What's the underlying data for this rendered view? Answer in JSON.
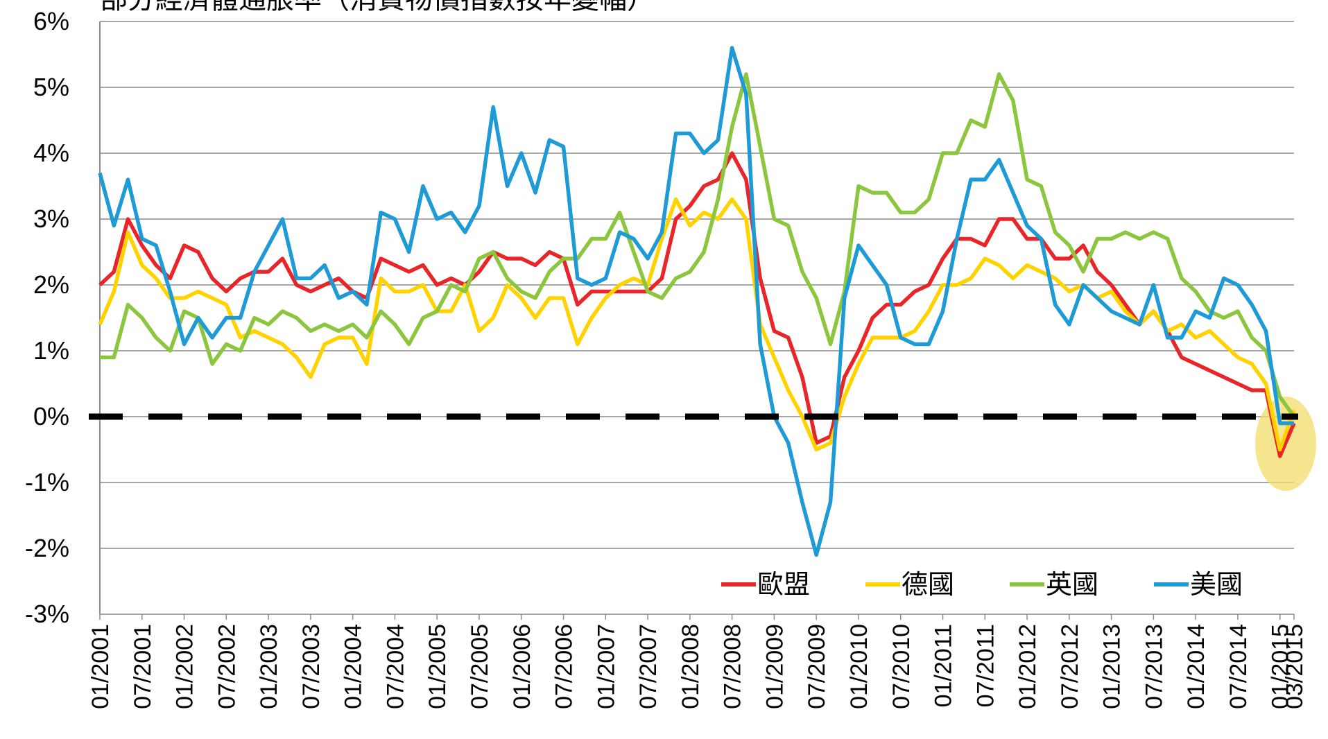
{
  "chart_data": {
    "type": "line",
    "title": "部分經濟體通脹率（消費物價指數按年變幅）",
    "categories": [
      "01/2001",
      null,
      null,
      "07/2001",
      null,
      null,
      "01/2002",
      null,
      null,
      "07/2002",
      null,
      null,
      "01/2003",
      null,
      null,
      "07/2003",
      null,
      null,
      "01/2004",
      null,
      null,
      "07/2004",
      null,
      null,
      "01/2005",
      null,
      null,
      "07/2005",
      null,
      null,
      "01/2006",
      null,
      null,
      "07/2006",
      null,
      null,
      "01/2007",
      null,
      null,
      "07/2007",
      null,
      null,
      "01/2008",
      null,
      null,
      "07/2008",
      null,
      null,
      "01/2009",
      null,
      null,
      "07/2009",
      null,
      null,
      "01/2010",
      null,
      null,
      "07/2010",
      null,
      null,
      "01/2011",
      null,
      null,
      "07/2011",
      null,
      null,
      "01/2012",
      null,
      null,
      "07/2012",
      null,
      null,
      "01/2013",
      null,
      null,
      "07/2013",
      null,
      null,
      "01/2014",
      null,
      null,
      "07/2014",
      null,
      null,
      "01/2015",
      "03/2015"
    ],
    "series": [
      {
        "name": "歐盟",
        "color": "#e8262a",
        "values": [
          2.0,
          2.2,
          3.0,
          2.6,
          2.3,
          2.1,
          2.6,
          2.5,
          2.1,
          1.9,
          2.1,
          2.2,
          2.2,
          2.4,
          2.0,
          1.9,
          2.0,
          2.1,
          1.9,
          1.8,
          2.4,
          2.3,
          2.2,
          2.3,
          2.0,
          2.1,
          2.0,
          2.2,
          2.5,
          2.4,
          2.4,
          2.3,
          2.5,
          2.4,
          1.7,
          1.9,
          1.9,
          1.9,
          1.9,
          1.9,
          2.1,
          3.0,
          3.2,
          3.5,
          3.6,
          4.0,
          3.6,
          2.1,
          1.3,
          1.2,
          0.6,
          -0.4,
          -0.3,
          0.6,
          1.0,
          1.5,
          1.7,
          1.7,
          1.9,
          2.0,
          2.4,
          2.7,
          2.7,
          2.6,
          3.0,
          3.0,
          2.7,
          2.7,
          2.4,
          2.4,
          2.6,
          2.2,
          2.0,
          1.7,
          1.4,
          1.6,
          1.3,
          0.9,
          0.8,
          0.7,
          0.6,
          0.5,
          0.4,
          0.4,
          -0.6,
          -0.1
        ]
      },
      {
        "name": "德國",
        "color": "#ffd200",
        "values": [
          1.4,
          1.9,
          2.8,
          2.3,
          2.1,
          1.8,
          1.8,
          1.9,
          1.8,
          1.7,
          1.2,
          1.3,
          1.2,
          1.1,
          0.9,
          0.6,
          1.1,
          1.2,
          1.2,
          0.8,
          2.1,
          1.9,
          1.9,
          2.0,
          1.6,
          1.6,
          2.0,
          1.3,
          1.5,
          2.0,
          1.8,
          1.5,
          1.8,
          1.8,
          1.1,
          1.5,
          1.8,
          2.0,
          2.1,
          2.0,
          2.7,
          3.3,
          2.9,
          3.1,
          3.0,
          3.3,
          3.0,
          1.4,
          0.9,
          0.4,
          0.0,
          -0.5,
          -0.4,
          0.3,
          0.8,
          1.2,
          1.2,
          1.2,
          1.3,
          1.6,
          2.0,
          2.0,
          2.1,
          2.4,
          2.3,
          2.1,
          2.3,
          2.2,
          2.1,
          1.9,
          2.0,
          1.8,
          1.9,
          1.6,
          1.4,
          1.6,
          1.3,
          1.4,
          1.2,
          1.3,
          1.1,
          0.9,
          0.8,
          0.5,
          -0.5,
          0.1
        ]
      },
      {
        "name": "英國",
        "color": "#8cc63f",
        "values": [
          0.9,
          0.9,
          1.7,
          1.5,
          1.2,
          1.0,
          1.6,
          1.5,
          0.8,
          1.1,
          1.0,
          1.5,
          1.4,
          1.6,
          1.5,
          1.3,
          1.4,
          1.3,
          1.4,
          1.2,
          1.6,
          1.4,
          1.1,
          1.5,
          1.6,
          2.0,
          1.9,
          2.4,
          2.5,
          2.1,
          1.9,
          1.8,
          2.2,
          2.4,
          2.4,
          2.7,
          2.7,
          3.1,
          2.5,
          1.9,
          1.8,
          2.1,
          2.2,
          2.5,
          3.3,
          4.4,
          5.2,
          4.1,
          3.0,
          2.9,
          2.2,
          1.8,
          1.1,
          1.9,
          3.5,
          3.4,
          3.4,
          3.1,
          3.1,
          3.3,
          4.0,
          4.0,
          4.5,
          4.4,
          5.2,
          4.8,
          3.6,
          3.5,
          2.8,
          2.6,
          2.2,
          2.7,
          2.7,
          2.8,
          2.7,
          2.8,
          2.7,
          2.1,
          1.9,
          1.6,
          1.5,
          1.6,
          1.2,
          1.0,
          0.3,
          0.0
        ]
      },
      {
        "name": "美國",
        "color": "#1e9ad6",
        "values": [
          3.7,
          2.9,
          3.6,
          2.7,
          2.6,
          1.9,
          1.1,
          1.5,
          1.2,
          1.5,
          1.5,
          2.2,
          2.6,
          3.0,
          2.1,
          2.1,
          2.3,
          1.8,
          1.9,
          1.7,
          3.1,
          3.0,
          2.5,
          3.5,
          3.0,
          3.1,
          2.8,
          3.2,
          4.7,
          3.5,
          4.0,
          3.4,
          4.2,
          4.1,
          2.1,
          2.0,
          2.1,
          2.8,
          2.7,
          2.4,
          2.8,
          4.3,
          4.3,
          4.0,
          4.2,
          5.6,
          4.9,
          1.1,
          0.0,
          -0.4,
          -1.3,
          -2.1,
          -1.3,
          1.8,
          2.6,
          2.3,
          2.0,
          1.2,
          1.1,
          1.1,
          1.6,
          2.7,
          3.6,
          3.6,
          3.9,
          3.4,
          2.9,
          2.7,
          1.7,
          1.4,
          2.0,
          1.8,
          1.6,
          1.5,
          1.4,
          2.0,
          1.2,
          1.2,
          1.6,
          1.5,
          2.1,
          2.0,
          1.7,
          1.3,
          -0.1,
          -0.1
        ]
      }
    ],
    "ylim": [
      -3,
      6
    ],
    "yticks": [
      {
        "value": -3,
        "label": "-3%"
      },
      {
        "value": -2,
        "label": "-2%"
      },
      {
        "value": -1,
        "label": "-1%"
      },
      {
        "value": 0,
        "label": "0%"
      },
      {
        "value": 1,
        "label": "1%"
      },
      {
        "value": 2,
        "label": "2%"
      },
      {
        "value": 3,
        "label": "3%"
      },
      {
        "value": 4,
        "label": "4%"
      },
      {
        "value": 5,
        "label": "5%"
      },
      {
        "value": 6,
        "label": "6%"
      }
    ],
    "reference_line": 0,
    "grid": true
  }
}
